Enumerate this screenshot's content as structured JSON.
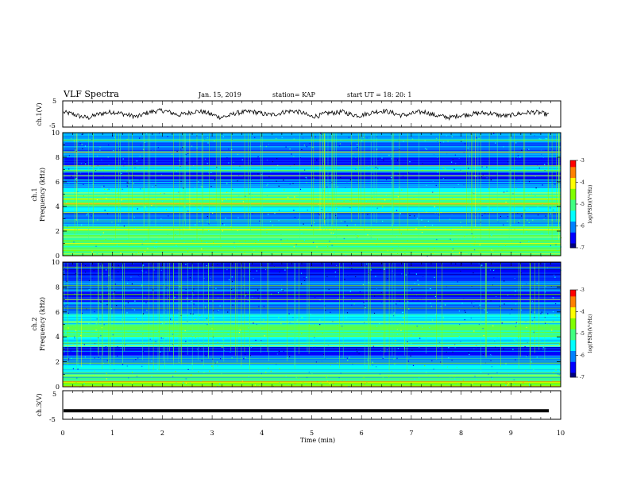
{
  "header": {
    "title": "VLF Spectra",
    "date": "Jan. 15, 2019",
    "station": "station= KAP",
    "start": "start  UT  =   18: 20: 1"
  },
  "colors": {
    "waveform": "#000000",
    "frame": "#000000"
  },
  "colormap": [
    "#00007f",
    "#0000ff",
    "#0080ff",
    "#00ffff",
    "#40ff80",
    "#80ff00",
    "#ffff00",
    "#ff8000",
    "#ff0000"
  ],
  "chart_data": [
    {
      "type": "line",
      "ylabel": "ch.1(V)",
      "ylim": [
        -5,
        5
      ],
      "y_ticklabels": [
        "5",
        "-5"
      ],
      "series": [
        {
          "values": [
            0.6,
            0.1,
            -0.9,
            -1.5,
            -0.3,
            0.4,
            0.8,
            0.2,
            -0.5,
            -1.1,
            0.3,
            1.0,
            1.3,
            0.6,
            -0.4,
            0.2,
            1.0,
            0.8,
            -0.2,
            -1.2,
            -0.8,
            0.4,
            0.7,
            0.9,
            0.2,
            -0.3,
            0.0,
            0.9,
            1.1,
            0.5,
            -1.0,
            -0.7,
            0.3,
            0.5,
            0.8,
            -0.2,
            -0.6,
            0.1,
            0.9,
            1.2,
            0.4,
            -0.5,
            -0.2,
            0.6,
            0.8,
            -0.4,
            -0.9,
            -1.4,
            -0.6,
            -0.3,
            0.1,
            0.4,
            0.2,
            -0.5,
            -0.8,
            -0.1,
            0.3,
            0.7,
            0.4,
            -0.3
          ]
        }
      ]
    },
    {
      "type": "heatmap",
      "ylabel": "ch.1\nFrequency (kHz)",
      "ylim": [
        0,
        10
      ],
      "y_ticklabels": [
        "0",
        "2",
        "4",
        "6",
        "8",
        "10"
      ],
      "colorbar": {
        "label": "log(PSD)(V²/Hz)",
        "range": [
          -7,
          -3
        ],
        "ticklabels": [
          "-3",
          "-4",
          "-5",
          "-6",
          "-7"
        ]
      },
      "bands": [
        {
          "f": [
            0.0,
            0.5
          ],
          "level": 0.55
        },
        {
          "f": [
            0.5,
            1.0
          ],
          "level": 0.5
        },
        {
          "f": [
            1.0,
            1.7
          ],
          "level": 0.45
        },
        {
          "f": [
            1.7,
            2.4
          ],
          "level": 0.55
        },
        {
          "f": [
            2.4,
            3.0
          ],
          "level": 0.3
        },
        {
          "f": [
            3.0,
            3.5
          ],
          "level": 0.2
        },
        {
          "f": [
            3.5,
            4.0
          ],
          "level": 0.4
        },
        {
          "f": [
            4.0,
            5.0
          ],
          "level": 0.55
        },
        {
          "f": [
            5.0,
            5.5
          ],
          "level": 0.4
        },
        {
          "f": [
            5.5,
            6.2
          ],
          "level": 0.25
        },
        {
          "f": [
            6.2,
            6.8
          ],
          "level": 0.12
        },
        {
          "f": [
            6.8,
            7.3
          ],
          "level": 0.35
        },
        {
          "f": [
            7.3,
            8.0
          ],
          "level": 0.15
        },
        {
          "f": [
            8.0,
            9.0
          ],
          "level": 0.28
        },
        {
          "f": [
            9.0,
            10.0
          ],
          "level": 0.3
        }
      ],
      "lines_khz": [
        0.4,
        1.0,
        1.5,
        2.1,
        2.3,
        3.5,
        4.2,
        4.6,
        5.1,
        6.5,
        6.9,
        7.3,
        8.4,
        9.4
      ]
    },
    {
      "type": "heatmap",
      "ylabel": "ch.2\nFrequency (kHz)",
      "ylim": [
        0,
        10
      ],
      "y_ticklabels": [
        "0",
        "2",
        "4",
        "6",
        "8",
        "10"
      ],
      "colorbar": {
        "label": "log(PSD)(V²/Hz)",
        "range": [
          -7,
          -3
        ],
        "ticklabels": [
          "-3",
          "-4",
          "-5",
          "-6",
          "-7"
        ]
      },
      "bands": [
        {
          "f": [
            0.0,
            0.5
          ],
          "level": 0.6
        },
        {
          "f": [
            0.5,
            1.2
          ],
          "level": 0.45
        },
        {
          "f": [
            1.2,
            1.8
          ],
          "level": 0.4
        },
        {
          "f": [
            1.8,
            2.5
          ],
          "level": 0.3
        },
        {
          "f": [
            2.5,
            3.2
          ],
          "level": 0.15
        },
        {
          "f": [
            3.2,
            4.0
          ],
          "level": 0.35
        },
        {
          "f": [
            4.0,
            5.0
          ],
          "level": 0.5
        },
        {
          "f": [
            5.0,
            5.8
          ],
          "level": 0.35
        },
        {
          "f": [
            5.8,
            6.8
          ],
          "level": 0.25
        },
        {
          "f": [
            6.8,
            7.6
          ],
          "level": 0.15
        },
        {
          "f": [
            7.6,
            8.5
          ],
          "level": 0.2
        },
        {
          "f": [
            8.5,
            10.0
          ],
          "level": 0.18
        }
      ],
      "lines_khz": [
        0.4,
        0.9,
        1.9,
        3.3,
        3.5,
        4.6,
        5.2,
        6.3,
        7.0,
        7.4,
        8.1,
        9.6
      ]
    },
    {
      "type": "line",
      "ylabel": "ch.3(V)",
      "ylim": [
        -5,
        5
      ],
      "y_ticklabels": [
        "5",
        "-5"
      ],
      "series": [
        {
          "values": [
            -2.0,
            -2.0
          ]
        }
      ]
    }
  ],
  "xaxis": {
    "label": "Time (min)",
    "range": [
      0,
      10
    ],
    "ticklabels": [
      "0",
      "1",
      "2",
      "3",
      "4",
      "5",
      "6",
      "7",
      "8",
      "9",
      "10"
    ]
  }
}
